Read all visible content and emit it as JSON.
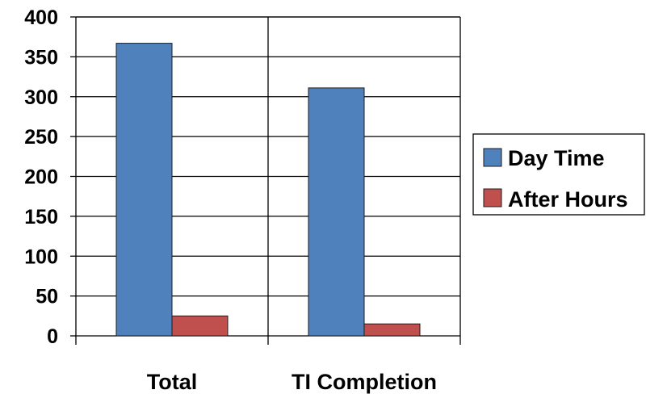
{
  "chart_data": {
    "type": "bar",
    "categories": [
      "Total",
      "TI Completion"
    ],
    "series": [
      {
        "name": "Day Time",
        "values": [
          367,
          311
        ],
        "color": "#4f81bd"
      },
      {
        "name": "After Hours",
        "values": [
          25,
          15
        ],
        "color": "#c0504d"
      }
    ],
    "ylim": [
      0,
      400
    ],
    "yticks": [
      0,
      50,
      100,
      150,
      200,
      250,
      300,
      350,
      400
    ],
    "grid": true,
    "legend_position": "right",
    "title": "",
    "xlabel": "",
    "ylabel": ""
  }
}
